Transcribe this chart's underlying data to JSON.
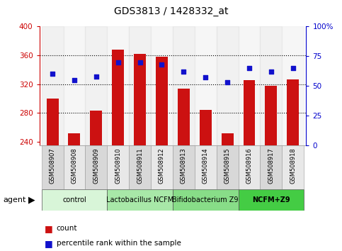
{
  "title": "GDS3813 / 1428332_at",
  "categories": [
    "GSM508907",
    "GSM508908",
    "GSM508909",
    "GSM508910",
    "GSM508911",
    "GSM508912",
    "GSM508913",
    "GSM508914",
    "GSM508915",
    "GSM508916",
    "GSM508917",
    "GSM508918"
  ],
  "bar_values": [
    300,
    252,
    283,
    368,
    362,
    358,
    314,
    284,
    252,
    326,
    318,
    327
  ],
  "dot_values": [
    60,
    55,
    58,
    70,
    70,
    68,
    62,
    57,
    53,
    65,
    62,
    65
  ],
  "ylim_left": [
    235,
    400
  ],
  "ylim_right": [
    0,
    100
  ],
  "yticks_left": [
    240,
    280,
    320,
    360,
    400
  ],
  "yticks_right": [
    0,
    25,
    50,
    75,
    100
  ],
  "bar_color": "#cc1111",
  "dot_color": "#1111cc",
  "bar_width": 0.55,
  "groups": [
    {
      "label": "control",
      "start": 0,
      "end": 2,
      "color": "#d8f5d8",
      "bold": false
    },
    {
      "label": "Lactobacillus NCFM",
      "start": 3,
      "end": 5,
      "color": "#a8e8a8",
      "bold": false
    },
    {
      "label": "Bifidobacterium Z9",
      "start": 6,
      "end": 8,
      "color": "#88dd88",
      "bold": false
    },
    {
      "label": "NCFM+Z9",
      "start": 9,
      "end": 11,
      "color": "#44cc44",
      "bold": true
    }
  ],
  "agent_label": "agent",
  "legend_count": "count",
  "legend_pct": "percentile rank within the sample",
  "yaxis_left_color": "#cc0000",
  "yaxis_right_color": "#0000cc",
  "tick_bg_odd": "#d8d8d8",
  "tick_bg_even": "#e8e8e8",
  "grid_yticks": [
    280,
    320,
    360
  ]
}
